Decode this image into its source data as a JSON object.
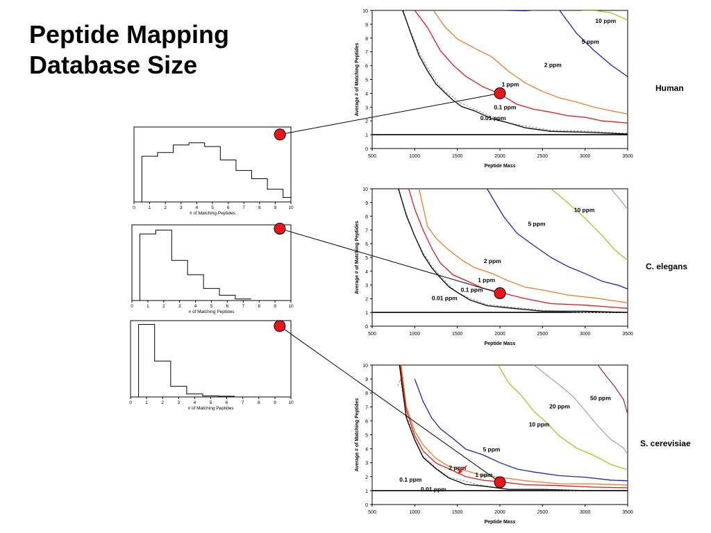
{
  "slide": {
    "title_line1": "Peptide Mapping",
    "title_line2": "Database Size"
  },
  "colors": {
    "red_marker": "#e8151b",
    "black": "#000000",
    "gray_dashed": "#a0a0a0",
    "red": "#e8151b",
    "orange": "#f47a1f",
    "blue": "#1a1fc8",
    "yellow_green": "#9ccb1a",
    "gray": "#a6a6a6",
    "maroon": "#9e2a55"
  },
  "chart_data": [
    {
      "type": "line",
      "organism_label": "Human",
      "xlabel": "Peptide Mass",
      "ylabel": "Average # of Matching Peptides",
      "xlim": [
        500,
        3500
      ],
      "ylim": [
        0,
        10
      ],
      "x_ticks": [
        "500",
        "1000",
        "1500",
        "2000",
        "2500",
        "3000",
        "3500"
      ],
      "y_ticks": [
        "0",
        "1",
        "2",
        "3",
        "4",
        "5",
        "6",
        "7",
        "8",
        "9",
        "10"
      ],
      "reference_line": 1,
      "marker": {
        "x": 2000,
        "y": 4.0
      },
      "series": [
        {
          "name": "10 ppm",
          "color": "yellow_green",
          "x": [
            2960,
            3100,
            3300,
            3500
          ],
          "y": [
            10,
            10,
            9.9,
            9.3
          ]
        },
        {
          "name": "5 ppm",
          "color": "blue",
          "x": [
            2050,
            2300,
            2500,
            2700,
            2900,
            3100,
            3300,
            3500
          ],
          "y": [
            10,
            10,
            10,
            10,
            8.4,
            7.1,
            6.1,
            5.2
          ]
        },
        {
          "name": "2 ppm",
          "color": "orange",
          "x": [
            1220,
            1350,
            1500,
            1700,
            1900,
            2100,
            2300,
            2500,
            2700,
            2900,
            3100,
            3300,
            3500
          ],
          "y": [
            10,
            8.9,
            7.9,
            7.3,
            6.6,
            5.6,
            4.8,
            4.1,
            3.7,
            3.3,
            3.0,
            2.8,
            2.5
          ]
        },
        {
          "name": "1 ppm",
          "color": "red",
          "x": [
            1000,
            1150,
            1300,
            1450,
            1600,
            1800,
            2000,
            2200,
            2400,
            2600,
            2800,
            3000,
            3200,
            3500
          ],
          "y": [
            10,
            8.7,
            7.1,
            6.1,
            5.2,
            4.5,
            3.9,
            3.2,
            2.9,
            2.6,
            2.4,
            2.2,
            2.0,
            1.85
          ]
        },
        {
          "name": "0.1 ppm",
          "color": "gray_dashed",
          "dashed": true,
          "x": [
            850,
            950,
            1050,
            1150,
            1250,
            1350,
            1450,
            1550,
            1700,
            1900,
            2100,
            2300,
            2600,
            3000,
            3500
          ],
          "y": [
            10,
            8.5,
            7.0,
            5.8,
            4.9,
            4.2,
            3.7,
            3.3,
            2.8,
            2.3,
            1.9,
            1.6,
            1.35,
            1.2,
            1.1
          ]
        },
        {
          "name": "0.01 ppm",
          "color": "black",
          "x": [
            860,
            950,
            1050,
            1150,
            1250,
            1350,
            1450,
            1550,
            1700,
            1900,
            2100,
            2300,
            2600,
            3000,
            3500
          ],
          "y": [
            10,
            8.4,
            6.8,
            5.6,
            4.7,
            4.0,
            3.5,
            3.1,
            2.7,
            2.2,
            1.8,
            1.5,
            1.3,
            1.15,
            1.05
          ]
        }
      ],
      "labels": [
        {
          "text": "10 ppm",
          "x": 3120,
          "y": 9.1
        },
        {
          "text": "5 ppm",
          "x": 2960,
          "y": 7.6
        },
        {
          "text": "2 ppm",
          "x": 2520,
          "y": 5.9
        },
        {
          "text": "1 ppm",
          "x": 2020,
          "y": 4.5
        },
        {
          "text": "0.1 ppm",
          "x": 1930,
          "y": 2.85
        },
        {
          "text": "0.01 ppm",
          "x": 1770,
          "y": 2.05
        }
      ]
    },
    {
      "type": "line",
      "organism_label": "C. elegans",
      "xlabel": "Peptide Mass",
      "ylabel": "Average # of Matching Peptides",
      "xlim": [
        500,
        3500
      ],
      "ylim": [
        0,
        10
      ],
      "x_ticks": [
        "500",
        "1000",
        "1500",
        "2000",
        "2500",
        "3000",
        "3500"
      ],
      "y_ticks": [
        "0",
        "1",
        "2",
        "3",
        "4",
        "5",
        "6",
        "7",
        "8",
        "9",
        "10"
      ],
      "reference_line": 1,
      "marker": {
        "x": 2000,
        "y": 2.4
      },
      "series": [
        {
          "name": "gray",
          "color": "gray",
          "x": [
            3300,
            3400,
            3500
          ],
          "y": [
            10,
            9.3,
            8.5
          ]
        },
        {
          "name": "10 ppm",
          "color": "yellow_green",
          "x": [
            2600,
            2800,
            3000,
            3200,
            3350,
            3500
          ],
          "y": [
            10,
            9.0,
            7.8,
            6.6,
            5.6,
            4.8
          ]
        },
        {
          "name": "5 ppm",
          "color": "blue",
          "x": [
            1850,
            1950,
            2050,
            2200,
            2400,
            2600,
            2800,
            3000,
            3200,
            3400,
            3500
          ],
          "y": [
            10,
            9.0,
            7.9,
            6.8,
            5.8,
            5.0,
            4.4,
            3.8,
            3.3,
            2.9,
            2.7
          ]
        },
        {
          "name": "2 ppm",
          "color": "orange",
          "x": [
            1050,
            1150,
            1250,
            1400,
            1550,
            1700,
            1900,
            2100,
            2300,
            2500,
            2800,
            3100,
            3500
          ],
          "y": [
            10,
            7.2,
            6.4,
            5.6,
            4.8,
            4.3,
            3.8,
            3.3,
            2.9,
            2.6,
            2.3,
            2.0,
            1.7
          ]
        },
        {
          "name": "1 ppm",
          "color": "red",
          "x": [
            930,
            1000,
            1100,
            1200,
            1300,
            1450,
            1600,
            1800,
            2000,
            2300,
            2600,
            3000,
            3500
          ],
          "y": [
            10,
            8.5,
            7.0,
            5.6,
            4.6,
            3.8,
            3.3,
            2.8,
            2.4,
            2.0,
            1.7,
            1.5,
            1.3
          ]
        },
        {
          "name": "0.1 ppm",
          "color": "gray_dashed",
          "dashed": true,
          "x": [
            800,
            900,
            1000,
            1100,
            1200,
            1300,
            1400,
            1500,
            1650,
            1850,
            2100,
            2500,
            3000,
            3500
          ],
          "y": [
            10,
            8.2,
            6.6,
            5.3,
            4.4,
            3.6,
            3.0,
            2.5,
            2.0,
            1.6,
            1.35,
            1.15,
            1.05,
            1.0
          ]
        },
        {
          "name": "0.01 ppm",
          "color": "black",
          "x": [
            810,
            900,
            1000,
            1100,
            1200,
            1300,
            1400,
            1500,
            1650,
            1850,
            2100,
            2500,
            3000,
            3500
          ],
          "y": [
            10,
            8.1,
            6.5,
            5.2,
            4.3,
            3.5,
            2.9,
            2.4,
            1.9,
            1.55,
            1.3,
            1.12,
            1.03,
            1.0
          ]
        }
      ],
      "labels": [
        {
          "text": "10 ppm",
          "x": 2870,
          "y": 8.3
        },
        {
          "text": "5 ppm",
          "x": 2330,
          "y": 7.3
        },
        {
          "text": "2 ppm",
          "x": 1810,
          "y": 4.6
        },
        {
          "text": "1 ppm",
          "x": 1740,
          "y": 3.2
        },
        {
          "text": "0.1 ppm",
          "x": 1540,
          "y": 2.5
        },
        {
          "text": "0.01 ppm",
          "x": 1200,
          "y": 1.9
        }
      ]
    },
    {
      "type": "line",
      "organism_label": "S. cerevisiae",
      "xlabel": "Peptide Mass",
      "ylabel": "Average # of Matching Peptides",
      "xlim": [
        500,
        3500
      ],
      "ylim": [
        0,
        10
      ],
      "x_ticks": [
        "500",
        "1000",
        "1500",
        "2000",
        "2500",
        "3000",
        "3500"
      ],
      "y_ticks": [
        "0",
        "1",
        "2",
        "3",
        "4",
        "5",
        "6",
        "7",
        "8",
        "9",
        "10"
      ],
      "reference_line": 1,
      "marker": {
        "x": 2000,
        "y": 1.6
      },
      "series": [
        {
          "name": "50 ppm",
          "color": "maroon",
          "x": [
            3150,
            3250,
            3350,
            3450,
            3500
          ],
          "y": [
            10,
            9.2,
            8.5,
            7.5,
            6.5
          ]
        },
        {
          "name": "20 ppm",
          "color": "gray",
          "x": [
            2400,
            2550,
            2700,
            2850,
            3000,
            3150,
            3300,
            3450,
            3500
          ],
          "y": [
            10,
            9.3,
            8.5,
            7.8,
            6.8,
            5.6,
            4.7,
            4.0,
            3.6
          ]
        },
        {
          "name": "10 ppm",
          "color": "yellow_green",
          "x": [
            1980,
            2100,
            2250,
            2400,
            2550,
            2700,
            2900,
            3100,
            3300,
            3500
          ],
          "y": [
            10,
            8.8,
            7.8,
            6.7,
            5.8,
            4.9,
            4.1,
            3.5,
            2.9,
            2.5
          ]
        },
        {
          "name": "5 ppm",
          "color": "blue",
          "x": [
            1000,
            1100,
            1200,
            1300,
            1450,
            1600,
            1800,
            2000,
            2200,
            2400,
            2700,
            3000,
            3300,
            3500
          ],
          "y": [
            9.0,
            7.3,
            6.2,
            5.5,
            4.7,
            4.0,
            3.5,
            3.0,
            2.6,
            2.3,
            2.1,
            1.9,
            1.75,
            1.7
          ]
        },
        {
          "name": "2 ppm",
          "color": "orange",
          "x": [
            840,
            900,
            1000,
            1100,
            1250,
            1400,
            1600,
            1800,
            2000,
            2300,
            2700,
            3100,
            3500
          ],
          "y": [
            10,
            7.0,
            5.3,
            4.2,
            3.3,
            2.8,
            2.4,
            2.1,
            1.9,
            1.7,
            1.55,
            1.45,
            1.4
          ]
        },
        {
          "name": "1 ppm",
          "color": "red",
          "x": [
            830,
            900,
            1000,
            1100,
            1250,
            1400,
            1600,
            1800,
            2000,
            2300,
            2700,
            3100,
            3500
          ],
          "y": [
            10,
            6.8,
            5.0,
            3.8,
            3.0,
            2.5,
            2.0,
            1.8,
            1.6,
            1.45,
            1.3,
            1.25,
            1.2
          ]
        },
        {
          "name": "0.1 ppm",
          "color": "gray_dashed",
          "dashed": true,
          "x": [
            800,
            830,
            900,
            1000,
            1100,
            1250,
            1400,
            1600,
            1800,
            2100,
            2500,
            3000,
            3500
          ],
          "y": [
            8.5,
            9.0,
            6.4,
            4.7,
            3.5,
            2.6,
            2.0,
            1.6,
            1.35,
            1.15,
            1.05,
            1.0,
            1.0
          ]
        },
        {
          "name": "0.01 ppm",
          "color": "black",
          "x": [
            820,
            900,
            1000,
            1100,
            1250,
            1400,
            1600,
            1800,
            2100,
            2500,
            3000,
            3500
          ],
          "y": [
            10,
            6.3,
            4.6,
            3.4,
            2.5,
            1.9,
            1.5,
            1.3,
            1.12,
            1.03,
            1.0,
            1.0
          ]
        }
      ],
      "labels": [
        {
          "text": "50 ppm",
          "x": 3060,
          "y": 7.5
        },
        {
          "text": "20 ppm",
          "x": 2580,
          "y": 6.9
        },
        {
          "text": "10 ppm",
          "x": 2340,
          "y": 5.6
        },
        {
          "text": "5 ppm",
          "x": 1800,
          "y": 3.8
        },
        {
          "text": "2 ppm",
          "x": 1400,
          "y": 2.5
        },
        {
          "text": "1 ppm",
          "x": 1710,
          "y": 2.0
        },
        {
          "text": "0.1 ppm",
          "x": 820,
          "y": 1.65
        },
        {
          "text": "0.01 ppm",
          "x": 1070,
          "y": 0.95
        }
      ]
    },
    {
      "type": "bar",
      "histogram": true,
      "xlabel": "# of Matching Peptides",
      "xlim": [
        0,
        10
      ],
      "x_ticks": [
        "0",
        "1",
        "2",
        "3",
        "4",
        "5",
        "6",
        "7",
        "8",
        "9",
        "10"
      ],
      "bin_edges": [
        0.5,
        1.5,
        2.5,
        3.5,
        4.5,
        5.5,
        6.5,
        7.5,
        8.5,
        9.5,
        10
      ],
      "values": [
        0.61,
        0.66,
        0.76,
        0.79,
        0.74,
        0.56,
        0.42,
        0.31,
        0.17,
        0.06
      ],
      "marker": {
        "x": 9.3,
        "y": 0.9
      }
    },
    {
      "type": "bar",
      "histogram": true,
      "xlabel": "# of Matching Peptides",
      "xlim": [
        0,
        10
      ],
      "x_ticks": [
        "0",
        "1",
        "2",
        "3",
        "4",
        "5",
        "6",
        "7",
        "8",
        "9",
        "10"
      ],
      "bin_edges": [
        0.5,
        1.5,
        2.5,
        3.5,
        4.5,
        5.5,
        6.5,
        7.5
      ],
      "values": [
        0.88,
        0.93,
        0.53,
        0.34,
        0.16,
        0.07,
        0.02
      ],
      "marker": {
        "x": 9.3,
        "y": 0.95
      }
    },
    {
      "type": "bar",
      "histogram": true,
      "xlabel": "# of Matching Peptides",
      "xlim": [
        0,
        10
      ],
      "x_ticks": [
        "0",
        "1",
        "2",
        "3",
        "4",
        "5",
        "6",
        "7",
        "8",
        "9",
        "10"
      ],
      "bin_edges": [
        0.5,
        1.5,
        2.5,
        3.5,
        4.5,
        5.5,
        6.5
      ],
      "values": [
        0.95,
        0.47,
        0.14,
        0.04,
        0.015,
        0.01
      ],
      "marker": {
        "x": 9.3,
        "y": 0.93
      }
    }
  ]
}
